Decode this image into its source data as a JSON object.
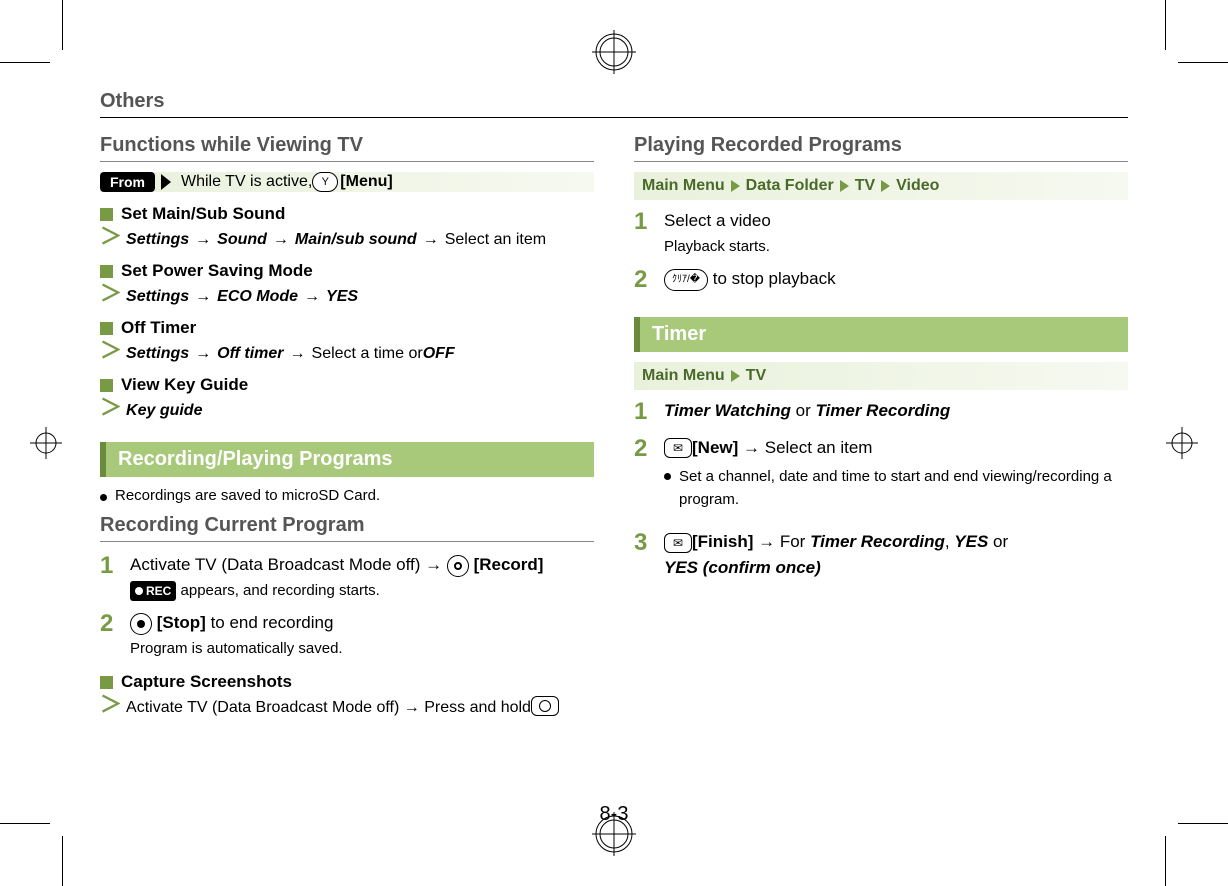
{
  "colors": {
    "accent_green": "#789a45",
    "section_bg": "#a8c97a",
    "section_border": "#6a8a3c",
    "crumb_text": "#4a6a2a",
    "gradient_start": "#e9f1dc",
    "gradient_end": "#f6f9f0",
    "heading_gray": "#555555"
  },
  "page_header": "Others",
  "page_number": "8-3",
  "left": {
    "heading": "Functions while Viewing TV",
    "from": {
      "badge": "From",
      "text": "While TV is active, ",
      "key": "Y",
      "key_label": "[Menu]"
    },
    "items": [
      {
        "title": "Set Main/Sub Sound",
        "path": [
          {
            "t": "Settings",
            "s": "bi"
          },
          {
            "t": "→",
            "s": "arrow"
          },
          {
            "t": "Sound",
            "s": "bi"
          },
          {
            "t": "→",
            "s": "arrow"
          },
          {
            "t": "Main/sub sound",
            "s": "bi"
          },
          {
            "t": "→",
            "s": "arrow"
          },
          {
            "t": "Select an item",
            "s": ""
          }
        ]
      },
      {
        "title": "Set Power Saving Mode",
        "path": [
          {
            "t": "Settings",
            "s": "bi"
          },
          {
            "t": "→",
            "s": "arrow"
          },
          {
            "t": "ECO Mode",
            "s": "bi"
          },
          {
            "t": "→",
            "s": "arrow"
          },
          {
            "t": "YES",
            "s": "bi"
          }
        ]
      },
      {
        "title": "Off Timer",
        "path": [
          {
            "t": "Settings",
            "s": "bi"
          },
          {
            "t": "→",
            "s": "arrow"
          },
          {
            "t": "Off timer",
            "s": "bi"
          },
          {
            "t": "→",
            "s": "arrow"
          },
          {
            "t": "Select a time or ",
            "s": ""
          },
          {
            "t": "OFF",
            "s": "bi"
          }
        ]
      },
      {
        "title": "View Key Guide",
        "path": [
          {
            "t": "Key guide",
            "s": "bi"
          }
        ]
      }
    ],
    "section": "Recording/Playing Programs",
    "bullet": "Recordings are saved to microSD Card.",
    "sub_heading": "Recording Current Program",
    "steps": [
      {
        "n": "1",
        "main_pre": "Activate TV (Data Broadcast Mode off) → ",
        "key_style": "round-hollow",
        "key_label": "[Record]",
        "sub_badge": "REC",
        "sub_after": "appears, and recording starts."
      },
      {
        "n": "2",
        "key_style": "round-solid",
        "key_label": "[Stop]",
        "main_after": " to end recording",
        "sub": "Program is automatically saved."
      }
    ],
    "capture": {
      "title": "Capture Screenshots",
      "line_pre": "Activate TV (Data Broadcast Mode off) → Press and hold "
    }
  },
  "right": {
    "heading": "Playing Recorded Programs",
    "crumb1": [
      "Main Menu",
      "Data Folder",
      "TV",
      "Video"
    ],
    "steps1": [
      {
        "n": "1",
        "main": "Select a video",
        "sub": "Playback starts."
      },
      {
        "n": "2",
        "key": "ｸﾘｱ/�",
        "after": " to stop playback"
      }
    ],
    "section": "Timer",
    "crumb2": [
      "Main Menu",
      "TV"
    ],
    "steps2": [
      {
        "n": "1",
        "parts": [
          {
            "t": "Timer Watching",
            "s": "bi"
          },
          {
            "t": " or ",
            "s": ""
          },
          {
            "t": "Timer Recording",
            "s": "bi"
          }
        ]
      },
      {
        "n": "2",
        "icon": "mail",
        "label": "[New]",
        "after": " → Select an item",
        "bullet": "Set a channel, date and time to start and end viewing/recording a program."
      },
      {
        "n": "3",
        "icon": "mail",
        "label": "[Finish]",
        "after_parts": [
          {
            "t": " → For ",
            "s": ""
          },
          {
            "t": "Timer Recording",
            "s": "bi"
          },
          {
            "t": ", ",
            "s": ""
          },
          {
            "t": "YES",
            "s": "bi"
          },
          {
            "t": " or",
            "s": ""
          }
        ],
        "line2": [
          {
            "t": "YES (confirm once)",
            "s": "bi"
          }
        ]
      }
    ]
  }
}
